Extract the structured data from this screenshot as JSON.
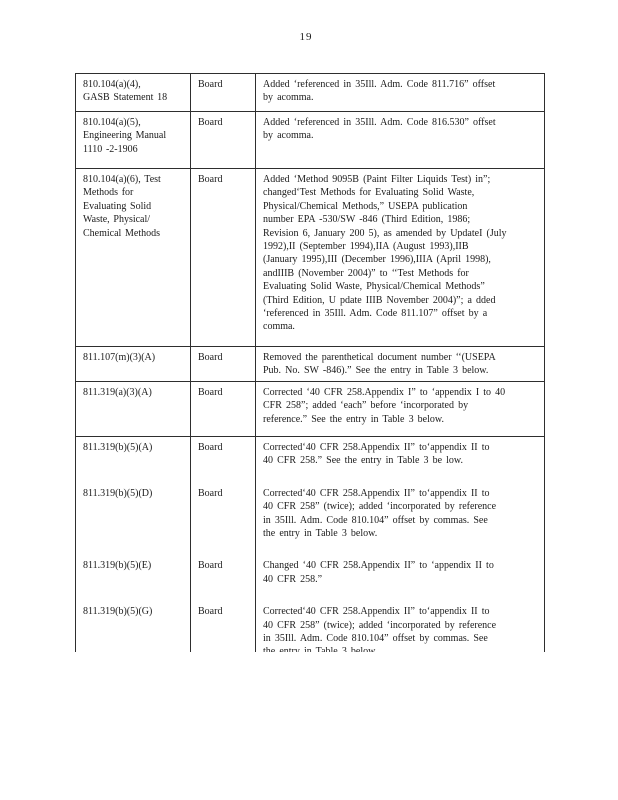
{
  "page": {
    "number": "19"
  },
  "table": {
    "rows": [
      {
        "code": "810.104(a)(4),\nGASB  Statement   18",
        "actor": "Board",
        "description": "Added  ‘referenced    in 35Ill.  Adm.  Code  811.716”  offset\nby acomma."
      },
      {
        "code": "810.104(a)(5),\nEngineering  Manual\n1110 -2-1906",
        "actor": "Board",
        "description": "Added  ‘referenced    in 35Ill.  Adm.  Code  816.530”  offset\nby acomma."
      },
      {
        "code": "810.104(a)(6),   Test\nMethods  for\nEvaluating  Solid\nWaste,  Physical/\nChemical   Methods",
        "actor": "Board",
        "description": "Added  ‘Method  9095B  (Paint  Filter  Liquids  Test)  in”;\nchanged‘Test   Methods   for Evaluating   Solid  Waste,\nPhysical/Chemical     Methods,”   USEPA   publication\nnumber   EPA -530/SW -846  (Third  Edition,   1986;\nRevision   6, January   200 5), as amended   by UpdateI   (July\n1992),II   (September    1994),IIA   (August   1993),IIB\n(January   1995),III   (December    1996),IIIA    (April  1998),\nandIIIB   (November    2004)”  to ‘‘Test  Methods   for\nEvaluating   Solid  Waste,  Physical/Chemical     Methods”\n(Third  Edition,  U pdate  IIIB  November    2004)”;  a dded\n‘referenced    in 35Ill.  Adm.  Code  811.107”   offset  by a\ncomma."
      },
      {
        "code": "811.107(m)(3)(A)",
        "actor": "Board",
        "description": "Removed    the parenthetical   document   number   ‘‘(USEPA\nPub.  No.  SW -846).”   See  the entry  in Table  3 below."
      },
      {
        "code": "811.319(a)(3)(A)",
        "actor": "Board",
        "description": "Corrected   ‘40  CFR  258.Appendix    I”  to ‘appendix    I to 40\nCFR  258”;  added  ‘each”  before  ‘incorporated     by\nreference.”    See  the entry  in Table  3 below."
      },
      {
        "code": "811.319(b)(5)(A)",
        "actor": "Board",
        "description": "Corrected‘40    CFR  258.Appendix    II”  to‘appendix    II to\n40  CFR  258.”   See  the entry  in Table  3 be low."
      },
      {
        "code": "811.319(b)(5)(D)",
        "actor": "Board",
        "description": "Corrected‘40    CFR  258.Appendix    II”  to‘appendix    II to\n40  CFR  258”  (twice);   added  ‘incorporated     by reference\nin 35Ill.  Adm.  Code  810.104”   offset  by commas.   See\nthe  entry  in Table  3 below."
      },
      {
        "code": "811.319(b)(5)(E)",
        "actor": "Board",
        "description": "Changed   ‘40 CFR   258.Appendix    II”  to ‘appendix    II to\n40  CFR  258.”"
      },
      {
        "code": "811.319(b)(5)(G)",
        "actor": "Board",
        "description": "Corrected‘40    CFR  258.Appendix    II”  to‘appendix    II to\n40  CFR  258”  (twice);   added  ‘incorporated     by reference\nin 35Ill.  Adm.  Code  810.104”   offset  by commas.   See\nthe  entry  in Table  3 below."
      }
    ]
  }
}
